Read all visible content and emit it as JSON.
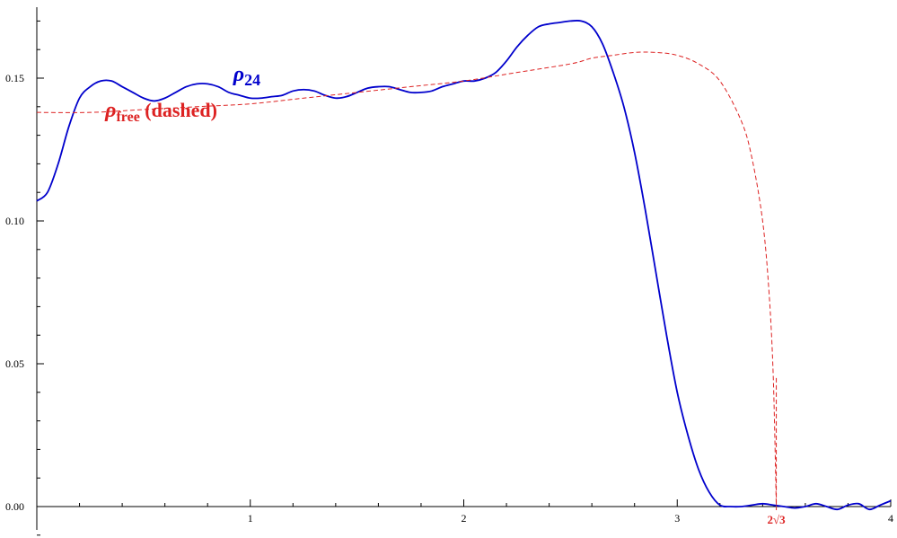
{
  "chart_data": {
    "type": "line",
    "title": "",
    "xlabel": "",
    "ylabel": "",
    "xlim": [
      0,
      4
    ],
    "ylim": [
      -0.01,
      0.175
    ],
    "x_ticks": [
      {
        "value": 1,
        "label": "1"
      },
      {
        "value": 2,
        "label": "2"
      },
      {
        "value": 3,
        "label": "3"
      },
      {
        "value": 4,
        "label": "4"
      }
    ],
    "y_ticks": [
      {
        "value": 0.0,
        "label": "0.00"
      },
      {
        "value": 0.05,
        "label": "0.05"
      },
      {
        "value": 0.1,
        "label": "0.10"
      },
      {
        "value": 0.15,
        "label": "0.15"
      }
    ],
    "grid": false,
    "series": [
      {
        "color": "#0000cc",
        "style": "solid",
        "x": [
          0,
          0.05,
          0.1,
          0.15,
          0.2,
          0.25,
          0.3,
          0.35,
          0.4,
          0.45,
          0.5,
          0.55,
          0.6,
          0.65,
          0.7,
          0.75,
          0.8,
          0.85,
          0.9,
          0.95,
          1.0,
          1.05,
          1.1,
          1.15,
          1.2,
          1.25,
          1.3,
          1.35,
          1.4,
          1.45,
          1.5,
          1.55,
          1.6,
          1.65,
          1.7,
          1.75,
          1.8,
          1.85,
          1.9,
          1.95,
          2.0,
          2.05,
          2.1,
          2.15,
          2.2,
          2.25,
          2.3,
          2.35,
          2.4,
          2.45,
          2.5,
          2.55,
          2.6,
          2.65,
          2.7,
          2.75,
          2.8,
          2.85,
          2.9,
          2.95,
          3.0,
          3.05,
          3.1,
          3.15,
          3.2,
          3.25,
          3.3,
          3.35,
          3.4,
          3.45,
          3.5,
          3.55,
          3.6,
          3.65,
          3.7,
          3.75,
          3.8,
          3.85,
          3.9,
          3.95,
          4.0
        ],
        "y": [
          0.107,
          0.11,
          0.12,
          0.133,
          0.143,
          0.147,
          0.149,
          0.149,
          0.147,
          0.145,
          0.143,
          0.142,
          0.143,
          0.145,
          0.147,
          0.148,
          0.148,
          0.147,
          0.145,
          0.144,
          0.143,
          0.143,
          0.1435,
          0.144,
          0.1455,
          0.146,
          0.1455,
          0.144,
          0.143,
          0.1435,
          0.145,
          0.1465,
          0.147,
          0.147,
          0.146,
          0.145,
          0.145,
          0.1455,
          0.147,
          0.148,
          0.149,
          0.149,
          0.15,
          0.152,
          0.156,
          0.161,
          0.165,
          0.168,
          0.169,
          0.1695,
          0.17,
          0.17,
          0.168,
          0.162,
          0.152,
          0.14,
          0.124,
          0.104,
          0.082,
          0.06,
          0.04,
          0.025,
          0.013,
          0.005,
          0.0005,
          0.0,
          0.0,
          0.0005,
          0.001,
          0.0005,
          0.0,
          -0.0005,
          0.0,
          0.001,
          0.0,
          -0.001,
          0.0005,
          0.001,
          -0.001,
          0.0005,
          0.002
        ]
      },
      {
        "color": "#dd2222",
        "style": "dashed",
        "x": [
          0,
          0.25,
          0.5,
          0.75,
          1.0,
          1.25,
          1.5,
          1.75,
          2.0,
          2.25,
          2.5,
          2.6,
          2.7,
          2.8,
          2.9,
          3.0,
          3.1,
          3.2,
          3.3,
          3.35,
          3.4,
          3.43,
          3.45,
          3.464
        ],
        "y": [
          0.138,
          0.138,
          0.139,
          0.14,
          0.141,
          0.143,
          0.145,
          0.147,
          0.149,
          0.152,
          0.155,
          0.157,
          0.158,
          0.159,
          0.159,
          0.158,
          0.155,
          0.149,
          0.135,
          0.122,
          0.1,
          0.075,
          0.045,
          0.0
        ]
      }
    ],
    "vertical_marker": {
      "x": 3.464,
      "color": "#dd2222",
      "label": "2√3"
    },
    "annotations": [
      {
        "text": "ρ",
        "sub": "24",
        "color": "#0000cc",
        "x": 0.92,
        "y": 0.149
      },
      {
        "text": "ρ",
        "sub": "free",
        "suffix": " (dashed)",
        "color": "#dd2222",
        "x": 0.32,
        "y": 0.1365
      }
    ]
  }
}
